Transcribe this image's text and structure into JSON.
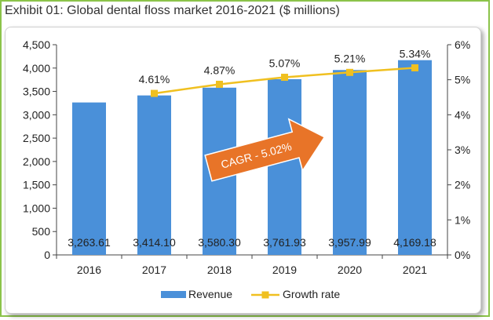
{
  "title": "Exhibit 01:  Global dental floss market 2016-2021 ($ millions)",
  "colors": {
    "bar": "#4a90d9",
    "line": "#f0c020",
    "arrow": "#e87428",
    "frame": "#8bc34a"
  },
  "chart_data": {
    "type": "bar",
    "categories": [
      "2016",
      "2017",
      "2018",
      "2019",
      "2020",
      "2021"
    ],
    "series": [
      {
        "name": "Revenue",
        "type": "bar",
        "axis": "left",
        "values": [
          3263.61,
          3414.1,
          3580.3,
          3761.93,
          3957.99,
          4169.18
        ],
        "labels": [
          "3,263.61",
          "3,414.10",
          "3,580.30",
          "3,761.93",
          "3,957.99",
          "4,169.18"
        ]
      },
      {
        "name": "Growth rate",
        "type": "line",
        "axis": "right",
        "values": [
          null,
          4.61,
          4.87,
          5.07,
          5.21,
          5.34
        ],
        "labels": [
          "",
          "4.61%",
          "4.87%",
          "5.07%",
          "5.21%",
          "5.34%"
        ]
      }
    ],
    "ylim_left": [
      0,
      4500
    ],
    "yticks_left": [
      "0",
      "500",
      "1,000",
      "1,500",
      "2,000",
      "2,500",
      "3,000",
      "3,500",
      "4,000",
      "4,500"
    ],
    "ylim_right": [
      0,
      6
    ],
    "yticks_right": [
      "0%",
      "1%",
      "2%",
      "3%",
      "4%",
      "5%",
      "6%"
    ],
    "annotation": "CAGR - 5.02%",
    "grid": false,
    "legend": "bottom"
  }
}
